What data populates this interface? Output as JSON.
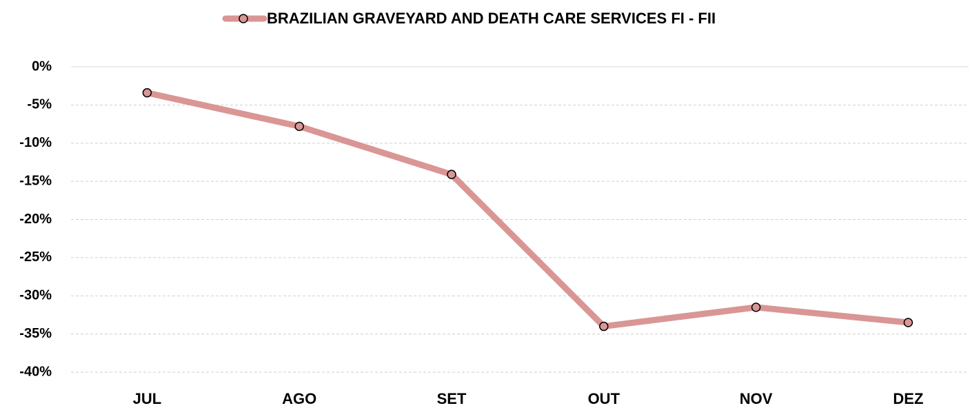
{
  "chart_data": {
    "type": "line",
    "categories": [
      "JUL",
      "AGO",
      "SET",
      "OUT",
      "NOV",
      "DEZ"
    ],
    "series": [
      {
        "name": "BRAZILIAN GRAVEYARD AND DEATH CARE SERVICES FI - FII",
        "color": "#d99694",
        "values": [
          -3.4,
          -7.8,
          -14.1,
          -34.0,
          -31.5,
          -33.5
        ]
      }
    ],
    "ylim": [
      -40,
      0
    ],
    "yticks": [
      {
        "value": -40,
        "label": "-40%"
      },
      {
        "value": -35,
        "label": "-35%"
      },
      {
        "value": -30,
        "label": "-30%"
      },
      {
        "value": -25,
        "label": "-25%"
      },
      {
        "value": -20,
        "label": "-20%"
      },
      {
        "value": -15,
        "label": "-15%"
      },
      {
        "value": -10,
        "label": "-10%"
      },
      {
        "value": -5,
        "label": "-5%"
      },
      {
        "value": 0,
        "label": "0%"
      }
    ],
    "grid": true,
    "legend": "top"
  }
}
